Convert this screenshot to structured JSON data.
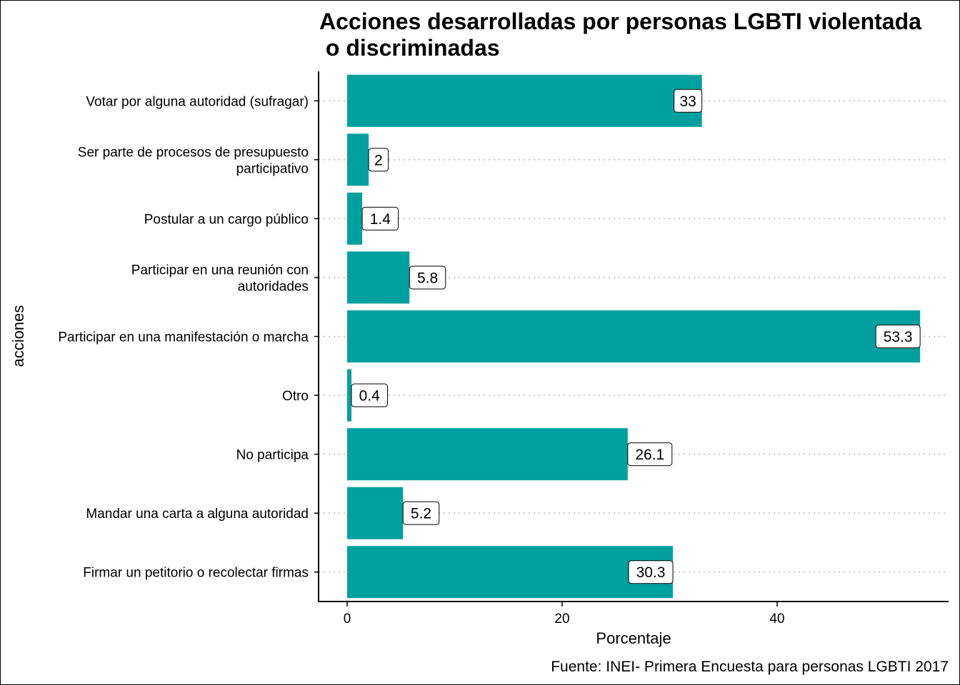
{
  "chart_data": {
    "type": "bar",
    "orientation": "horizontal",
    "title_lines": [
      "Acciones desarrolladas por personas LGBTI violentada",
      " o discriminadas"
    ],
    "xlabel": "Porcentaje",
    "ylabel": "acciones",
    "caption": "Fuente: INEI- Primera Encuesta para personas LGBTI 2017",
    "xlim": [
      -2.6,
      55.9
    ],
    "xticks": [
      0,
      20,
      40
    ],
    "grid": "dotted horizontal",
    "bar_color": "#00A09E",
    "categories": [
      [
        "Votar por alguna autoridad (sufragar)"
      ],
      [
        "Ser parte de procesos de presupuesto",
        "participativo"
      ],
      [
        "Postular a un cargo público"
      ],
      [
        "Participar en una reunión con",
        "autoridades"
      ],
      [
        "Participar en una manifestación o marcha"
      ],
      [
        "Otro"
      ],
      [
        "No participa"
      ],
      [
        "Mandar una carta a alguna autoridad"
      ],
      [
        "Firmar un petitorio o recolectar firmas"
      ]
    ],
    "values": [
      33,
      2,
      1.4,
      5.8,
      53.3,
      0.4,
      26.1,
      5.2,
      30.3
    ],
    "labels": [
      "33",
      "2",
      "1.4",
      "5.8",
      "53.3",
      "0.4",
      "26.1",
      "5.2",
      "30.3"
    ]
  }
}
